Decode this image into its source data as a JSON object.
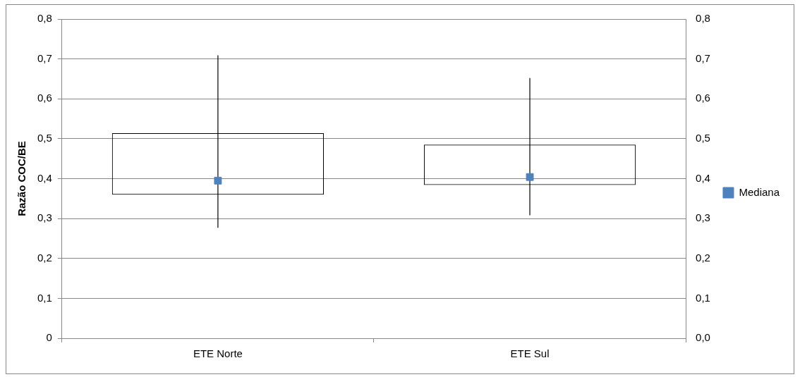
{
  "chart_data": {
    "type": "box",
    "ylabel": "Razão COC/BE",
    "categories": [
      "ETE Norte",
      "ETE Sul"
    ],
    "series": [
      {
        "color": "#000000",
        "boxes": [
          {
            "low": 0.277,
            "q1": 0.36,
            "q3": 0.514,
            "high": 0.709
          },
          {
            "low": 0.308,
            "q1": 0.384,
            "q3": 0.485,
            "high": 0.652
          }
        ]
      },
      {
        "type": "scatter",
        "name": "Mediana",
        "color": "#4f81bd",
        "x": [
          "ETE Norte",
          "ETE Sul"
        ],
        "values": [
          0.395,
          0.404
        ],
        "marker": "square"
      }
    ],
    "ylim": [
      0,
      0.8
    ],
    "yticks": [
      {
        "value": 0,
        "label": "0"
      },
      {
        "value": 0.1,
        "label": "0,1"
      },
      {
        "value": 0.2,
        "label": "0,2"
      },
      {
        "value": 0.3,
        "label": "0,3"
      },
      {
        "value": 0.4,
        "label": "0,4"
      },
      {
        "value": 0.5,
        "label": "0,5"
      },
      {
        "value": 0.6,
        "label": "0,6"
      },
      {
        "value": 0.7,
        "label": "0,7"
      },
      {
        "value": 0.8,
        "label": "0,8"
      }
    ],
    "y2lim": [
      0,
      0.8
    ],
    "y2ticks": [
      {
        "value": 0,
        "label": "0,0"
      },
      {
        "value": 0.1,
        "label": "0,1"
      },
      {
        "value": 0.2,
        "label": "0,2"
      },
      {
        "value": 0.3,
        "label": "0,3"
      },
      {
        "value": 0.4,
        "label": "0,4"
      },
      {
        "value": 0.5,
        "label": "0,5"
      },
      {
        "value": 0.6,
        "label": "0,6"
      },
      {
        "value": 0.7,
        "label": "0,7"
      },
      {
        "value": 0.8,
        "label": "0,8"
      }
    ],
    "grid": "y",
    "legend": "right"
  }
}
